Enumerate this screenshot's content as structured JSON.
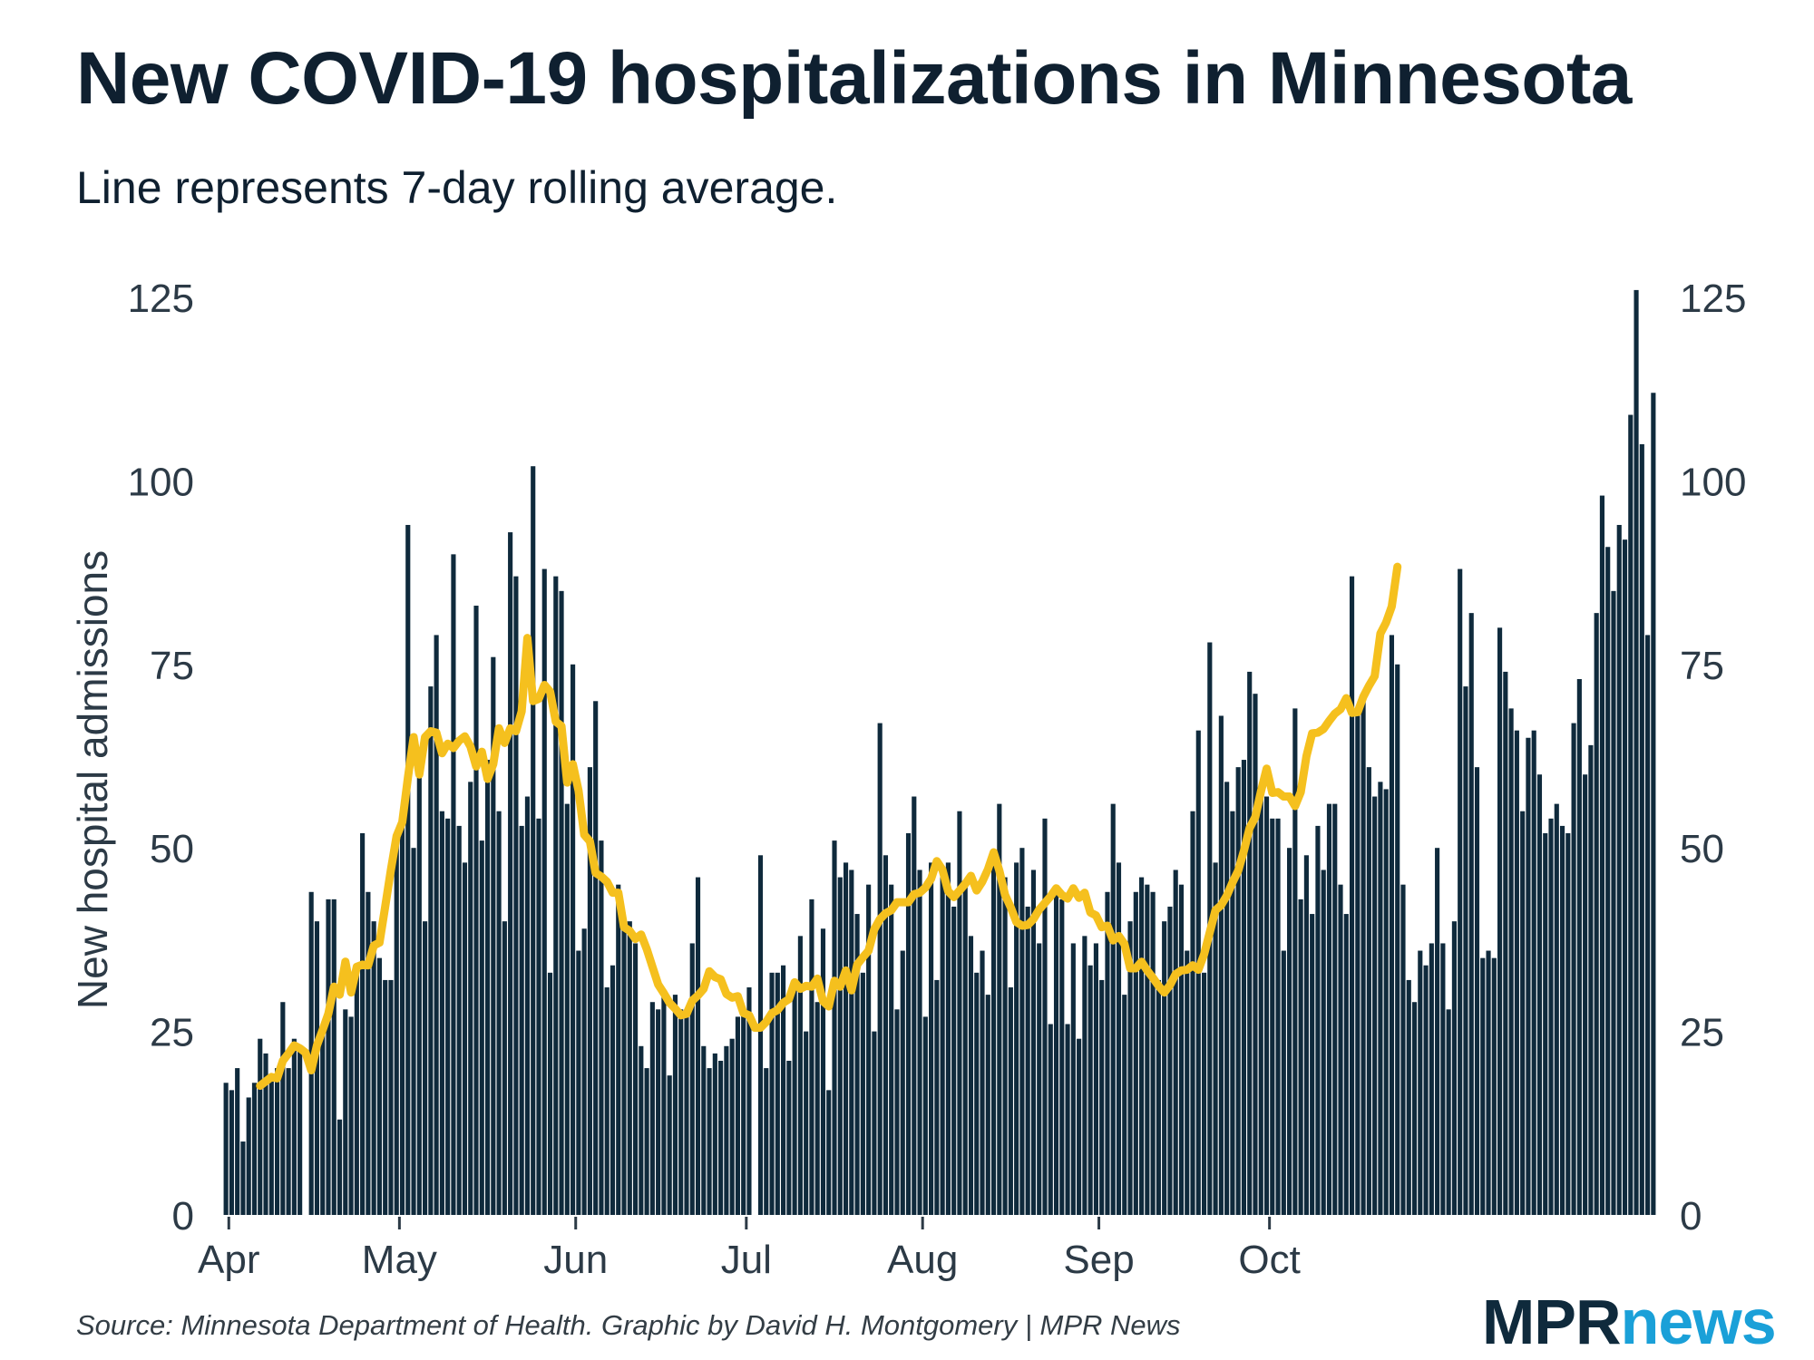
{
  "header": {
    "title": "New COVID-19 hospitalizations in Minnesota",
    "subtitle": "Line represents 7-day rolling average."
  },
  "footer": {
    "source": "Source: Minnesota Department of Health. Graphic by David H. Montgomery | MPR News",
    "logo_mpr": "MPR",
    "logo_news": "news"
  },
  "colors": {
    "bars": "#0f2a3c",
    "line": "#f5c01e",
    "text": "#0f2030"
  },
  "chart_data": {
    "type": "bar",
    "title": "New COVID-19 hospitalizations in Minnesota",
    "ylabel": "New hospital admissions",
    "xlabel": "",
    "ylim": [
      0,
      125
    ],
    "yticks": [
      0,
      25,
      50,
      75,
      100,
      125
    ],
    "month_labels": [
      {
        "label": "Apr",
        "index": 1
      },
      {
        "label": "May",
        "index": 31
      },
      {
        "label": "Jun",
        "index": 62
      },
      {
        "label": "Jul",
        "index": 92
      },
      {
        "label": "Aug",
        "index": 123
      },
      {
        "label": "Sep",
        "index": 154
      },
      {
        "label": "Oct",
        "index": 184
      }
    ],
    "series": [
      {
        "name": "Daily new hospital admissions",
        "kind": "bar",
        "values": [
          18,
          17,
          20,
          10,
          16,
          18,
          24,
          22,
          19,
          20,
          29,
          20,
          24,
          23,
          null,
          44,
          40,
          25,
          43,
          43,
          13,
          28,
          27,
          33,
          52,
          44,
          40,
          35,
          32,
          32,
          51,
          55,
          94,
          50,
          63,
          40,
          72,
          79,
          55,
          54,
          90,
          53,
          48,
          59,
          83,
          51,
          62,
          76,
          55,
          40,
          93,
          87,
          53,
          57,
          102,
          54,
          88,
          33,
          87,
          85,
          56,
          75,
          36,
          39,
          61,
          70,
          51,
          31,
          34,
          45,
          40,
          40,
          37,
          23,
          20,
          29,
          28,
          30,
          19,
          30,
          28,
          28,
          37,
          46,
          23,
          20,
          22,
          21,
          23,
          24,
          27,
          28,
          31,
          null,
          49,
          20,
          33,
          33,
          34,
          21,
          31,
          38,
          25,
          43,
          29,
          39,
          17,
          51,
          46,
          48,
          47,
          41,
          33,
          45,
          25,
          67,
          49,
          45,
          28,
          36,
          52,
          57,
          47,
          27,
          48,
          32,
          47,
          48,
          42,
          55,
          45,
          38,
          33,
          36,
          30,
          48,
          56,
          46,
          31,
          48,
          50,
          42,
          47,
          37,
          54,
          26,
          44,
          43,
          26,
          37,
          24,
          38,
          34,
          37,
          32,
          44,
          56,
          48,
          30,
          40,
          44,
          46,
          45,
          44,
          32,
          40,
          42,
          47,
          45,
          36,
          55,
          66,
          33,
          78,
          48,
          68,
          59,
          55,
          61,
          62,
          74,
          71,
          58,
          57,
          54,
          54,
          36,
          50,
          69,
          43,
          49,
          41,
          53,
          47,
          56,
          56,
          45,
          41,
          87,
          68,
          71,
          61,
          57,
          59,
          58,
          79,
          75,
          45,
          32,
          29,
          36,
          34,
          37,
          50,
          37,
          28,
          40,
          88,
          72,
          82,
          61,
          35,
          36,
          35,
          80,
          74,
          69,
          66,
          55,
          65,
          66,
          60,
          52,
          54,
          56,
          53,
          52,
          67,
          73,
          60,
          64,
          82,
          98,
          91,
          85,
          94,
          92,
          109,
          126,
          105,
          79,
          112
        ]
      },
      {
        "name": "7-day rolling average",
        "kind": "line",
        "start_index": 6,
        "values": [
          17.6,
          18.2,
          18.8,
          18.6,
          21,
          22,
          23.1,
          22.7,
          22.1,
          19.7,
          23.1,
          25.2,
          27.4,
          31.1,
          30,
          34.5,
          30.3,
          33.8,
          34.1,
          34,
          36.7,
          37.1,
          42,
          47,
          51.6,
          53.5,
          59.6,
          65.1,
          60,
          65.1,
          65.9,
          65.7,
          62.9,
          64.2,
          63.6,
          64.6,
          65.2,
          63.8,
          61.1,
          63.1,
          59.4,
          61.4,
          66.3,
          64.3,
          66.3,
          65.9,
          68.6,
          78.6,
          70,
          70.3,
          72.2,
          71.3,
          67.2,
          66.6,
          58.9,
          61.4,
          57.8,
          51.8,
          50.9,
          46.6,
          46.1,
          45.4,
          43.9,
          43.9,
          39.2,
          38.7,
          37.6,
          38.2,
          36.2,
          33.8,
          31.4,
          30.2,
          28.9,
          28.1,
          27.2,
          27.4,
          29.2,
          29.9,
          30.8,
          33.2,
          32.4,
          32.1,
          30.1,
          29.6,
          29.8,
          27.5,
          27.2,
          25.5,
          25.5,
          26.3,
          27.5,
          27.9,
          28.9,
          29.4,
          31.7,
          30.8,
          31.2,
          31.1,
          32.2,
          29.1,
          28.4,
          31.9,
          31.1,
          33.3,
          30.6,
          34.1,
          35.1,
          36,
          38.9,
          40.3,
          41.1,
          41.5,
          42.6,
          42.6,
          42.6,
          43.7,
          43.9,
          44.6,
          45.8,
          48.2,
          47,
          44.1,
          43.3,
          44.2,
          45.1,
          46.2,
          44.2,
          45.4,
          47.1,
          49.4,
          46.9,
          43.6,
          41.9,
          39.9,
          39.4,
          39.5,
          40.3,
          41.6,
          42.5,
          43.4,
          44.5,
          43.6,
          43.1,
          44.5,
          43.2,
          43.9,
          41.2,
          40.8,
          39.2,
          39.4,
          37.4,
          38,
          36.9,
          33.6,
          33.6,
          34.5,
          33.3,
          32.3,
          31.2,
          30.3,
          31.3,
          32.8,
          33.3,
          33.4,
          34,
          33.4,
          35.5,
          38.5,
          41.5,
          42.2,
          43.5,
          45.3,
          46.9,
          49.6,
          52.7,
          54.2,
          57.7,
          60.8,
          57.5,
          57.6,
          57,
          57,
          55.7,
          57.6,
          62.5,
          65.6,
          65.7,
          66.2,
          67.3,
          68.3,
          68.9,
          70.4,
          68.4,
          68.5,
          70.6,
          72.1,
          73.4,
          79.2,
          80.7,
          82.9,
          88.3
        ]
      }
    ]
  }
}
